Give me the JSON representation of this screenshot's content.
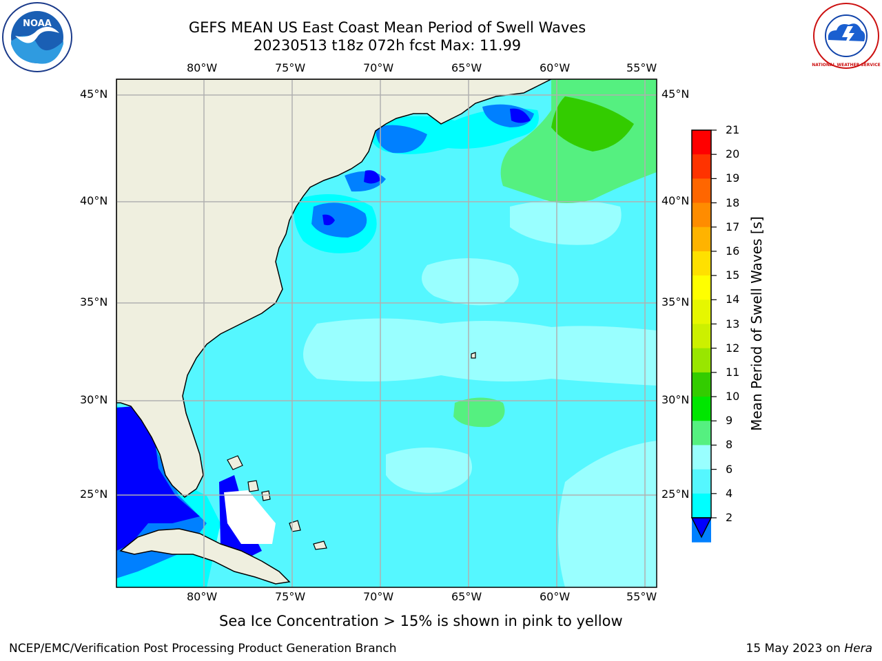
{
  "header": {
    "title_line1": "GEFS MEAN US East Coast Mean Period of Swell Waves",
    "title_line2": "20230513 t18z 072h fcst   Max: 11.99"
  },
  "logos": {
    "left": {
      "icon": "noaa-logo-icon",
      "text": "NOAA"
    },
    "right": {
      "icon": "nws-logo-icon",
      "text": "NATIONAL WEATHER SERVICE"
    }
  },
  "map": {
    "lon_ticks": [
      "80°W",
      "75°W",
      "70°W",
      "65°W",
      "60°W",
      "55°W"
    ],
    "lat_ticks": [
      "45°N",
      "40°N",
      "35°N",
      "30°N",
      "25°N"
    ],
    "land_color": "#efefdf",
    "grid_color": "#b0b0b0"
  },
  "colorbar": {
    "title": "Mean Period of Swell Waves [s]",
    "levels": [
      "21",
      "20",
      "19",
      "18",
      "17",
      "16",
      "15",
      "14",
      "13",
      "12",
      "11",
      "10",
      "9",
      "8",
      "6",
      "4",
      "2"
    ],
    "colors": [
      "#ff0000",
      "#ff3300",
      "#ff6600",
      "#ff8c00",
      "#ffb300",
      "#ffe000",
      "#ffff00",
      "#e6f700",
      "#ccf000",
      "#99e600",
      "#33cc00",
      "#00e600",
      "#55f080",
      "#99ffff",
      "#55f7ff",
      "#00ffff",
      "#0080ff",
      "#0000ff"
    ]
  },
  "notes": {
    "ice": "Sea Ice Concentration > 15% is shown in pink to yellow"
  },
  "footer": {
    "left": "NCEP/EMC/Verification Post Processing Product Generation Branch",
    "date": "15 May 2023 on",
    "machine": "Hera"
  }
}
